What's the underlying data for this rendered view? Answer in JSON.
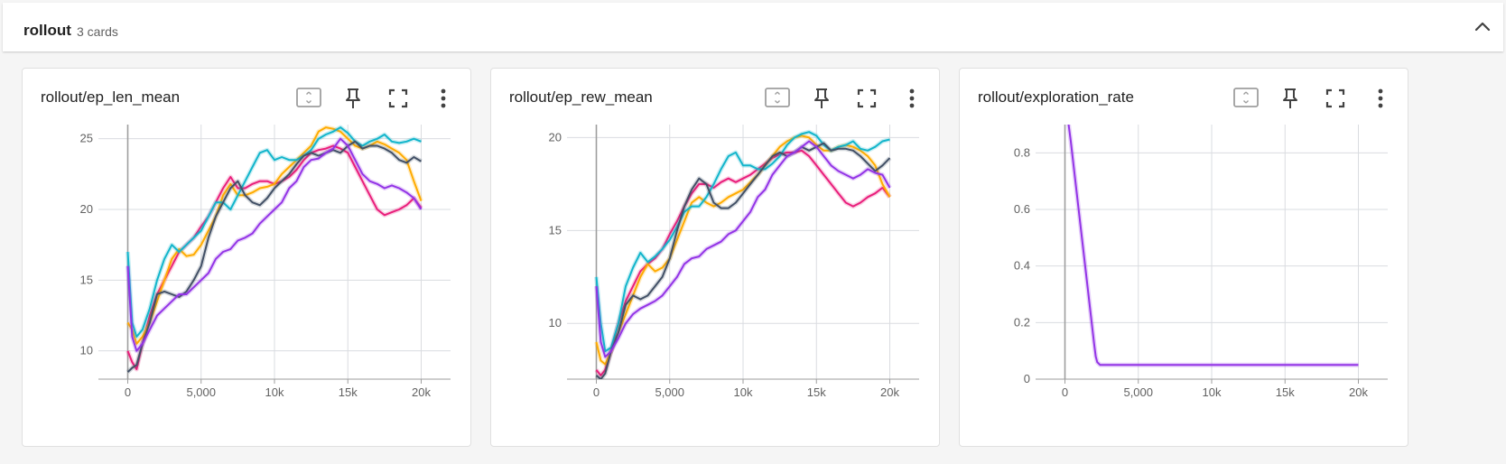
{
  "group": {
    "title": "rollout",
    "count_label": "3 cards"
  },
  "cards": [
    {
      "title": "rollout/ep_len_mean"
    },
    {
      "title": "rollout/ep_rew_mean"
    },
    {
      "title": "rollout/exploration_rate"
    }
  ],
  "colors": {
    "run1": "#e91e7b",
    "run2": "#ffab00",
    "run3": "#12b5cb",
    "run4": "#425066",
    "run5": "#9334e6"
  },
  "chart_data": [
    {
      "type": "line",
      "title": "rollout/ep_len_mean",
      "xlim": [
        -2000,
        22000
      ],
      "ylim": [
        8,
        26
      ],
      "xticks": [
        0,
        5000,
        10000,
        15000,
        20000
      ],
      "xtick_labels": [
        "0",
        "5,000",
        "10k",
        "15k",
        "20k"
      ],
      "yticks": [
        10,
        15,
        20,
        25
      ],
      "ytick_labels": [
        "10",
        "15",
        "20",
        "25"
      ],
      "grid": true,
      "series": [
        {
          "color": "#e91e7b",
          "x": [
            0,
            300,
            600,
            1000,
            1500,
            2000,
            2500,
            3000,
            3500,
            4000,
            4500,
            5000,
            5500,
            6000,
            6500,
            7000,
            7500,
            8000,
            8500,
            9000,
            9500,
            10000,
            10500,
            11000,
            11500,
            12000,
            12500,
            13000,
            13500,
            14000,
            14500,
            15000,
            15500,
            16000,
            16500,
            17000,
            17500,
            18000,
            18500,
            19000,
            19500,
            20000
          ],
          "y": [
            10,
            9.2,
            8.7,
            10.5,
            12.5,
            14,
            15,
            16,
            17,
            17.5,
            18,
            18.8,
            19.5,
            20.5,
            21.5,
            22.3,
            21.5,
            21.5,
            21.8,
            22,
            22,
            21.8,
            22,
            22.3,
            22.8,
            23.5,
            24,
            24.2,
            24.3,
            24.5,
            24.3,
            24,
            23,
            22,
            21,
            20,
            19.6,
            19.8,
            20,
            20.3,
            20.8,
            20.1
          ]
        },
        {
          "color": "#ffab00",
          "x": [
            0,
            300,
            600,
            1000,
            1500,
            2000,
            2500,
            3000,
            3500,
            4000,
            4500,
            5000,
            5500,
            6000,
            6500,
            7000,
            7500,
            8000,
            8500,
            9000,
            9500,
            10000,
            10500,
            11000,
            11500,
            12000,
            12500,
            13000,
            13500,
            14000,
            14500,
            15000,
            15500,
            16000,
            16500,
            17000,
            17500,
            18000,
            18500,
            19000,
            19500,
            20000
          ],
          "y": [
            12,
            11.5,
            10.5,
            11,
            12,
            13.5,
            15,
            16.5,
            17.2,
            16.7,
            16.8,
            17.5,
            18.5,
            19.5,
            21,
            21.8,
            21,
            21,
            21.2,
            21.5,
            21.6,
            21.8,
            22.5,
            23,
            23.5,
            24,
            24.5,
            25.5,
            25.8,
            25.7,
            25.5,
            25,
            24.5,
            24.3,
            24.5,
            24.8,
            24.6,
            24.3,
            24,
            23.5,
            22,
            20.6
          ]
        },
        {
          "color": "#12b5cb",
          "x": [
            0,
            300,
            600,
            1000,
            1500,
            2000,
            2500,
            3000,
            3500,
            4000,
            4500,
            5000,
            5500,
            6000,
            6500,
            7000,
            7500,
            8000,
            8500,
            9000,
            9500,
            10000,
            10500,
            11000,
            11500,
            12000,
            12500,
            13000,
            13500,
            14000,
            14500,
            15000,
            15500,
            16000,
            16500,
            17000,
            17500,
            18000,
            18500,
            19000,
            19500,
            20000
          ],
          "y": [
            17,
            12,
            11,
            11.5,
            13,
            15,
            16.5,
            17.5,
            17,
            17.5,
            18,
            18.5,
            19.5,
            20.5,
            20.5,
            20,
            21,
            22,
            23,
            24,
            24.2,
            23.5,
            23.7,
            23.5,
            23.5,
            23.8,
            24.2,
            25,
            25.3,
            25.5,
            25.8,
            25.4,
            24.8,
            24.5,
            24.8,
            25,
            25.3,
            24.8,
            24.7,
            24.8,
            25,
            24.8
          ]
        },
        {
          "color": "#425066",
          "x": [
            0,
            300,
            600,
            1000,
            1500,
            2000,
            2500,
            3000,
            3500,
            4000,
            4500,
            5000,
            5500,
            6000,
            6500,
            7000,
            7500,
            8000,
            8500,
            9000,
            9500,
            10000,
            10500,
            11000,
            11500,
            12000,
            12500,
            13000,
            13500,
            14000,
            14500,
            15000,
            15500,
            16000,
            16500,
            17000,
            17500,
            18000,
            18500,
            19000,
            19500,
            20000
          ],
          "y": [
            8.5,
            8.8,
            9,
            10.5,
            12,
            14,
            14.2,
            14,
            13.8,
            14.2,
            15,
            16,
            18,
            19.5,
            20.5,
            21.5,
            22,
            21,
            20.5,
            20.3,
            20.8,
            21.5,
            22,
            22.5,
            23.2,
            23.8,
            24,
            23.8,
            24,
            24.2,
            24,
            24.5,
            24.8,
            24.3,
            24.5,
            24.5,
            24.3,
            24,
            23.5,
            23.3,
            23.7,
            23.4
          ]
        },
        {
          "color": "#9334e6",
          "x": [
            0,
            300,
            600,
            1000,
            1500,
            2000,
            2500,
            3000,
            3500,
            4000,
            4500,
            5000,
            5500,
            6000,
            6500,
            7000,
            7500,
            8000,
            8500,
            9000,
            9500,
            10000,
            10500,
            11000,
            11500,
            12000,
            12500,
            13000,
            13500,
            14000,
            14500,
            15000,
            15500,
            16000,
            16500,
            17000,
            17500,
            18000,
            18500,
            19000,
            19500,
            20000
          ],
          "y": [
            16,
            11,
            10,
            10.5,
            11.5,
            12.5,
            13,
            13.5,
            14,
            14,
            14.5,
            15,
            15.5,
            16.5,
            17,
            17.2,
            17.8,
            18,
            18.3,
            19,
            19.5,
            20,
            20.5,
            21.5,
            22,
            23,
            23.5,
            23.6,
            24,
            24.3,
            25,
            24.5,
            23.5,
            22.5,
            22,
            21.8,
            21.5,
            21.7,
            21.5,
            21.2,
            20.8,
            20
          ]
        }
      ]
    },
    {
      "type": "line",
      "title": "rollout/ep_rew_mean",
      "xlim": [
        -2000,
        22000
      ],
      "ylim": [
        7,
        20.7
      ],
      "xticks": [
        0,
        5000,
        10000,
        15000,
        20000
      ],
      "xtick_labels": [
        "0",
        "5,000",
        "10k",
        "15k",
        "20k"
      ],
      "yticks": [
        10,
        15,
        20
      ],
      "ytick_labels": [
        "10",
        "15",
        "20"
      ],
      "grid": true,
      "series": [
        {
          "color": "#e91e7b",
          "x": [
            0,
            300,
            600,
            1000,
            1500,
            2000,
            2500,
            3000,
            3500,
            4000,
            4500,
            5000,
            5500,
            6000,
            6500,
            7000,
            7500,
            8000,
            8500,
            9000,
            9500,
            10000,
            10500,
            11000,
            11500,
            12000,
            12500,
            13000,
            13500,
            14000,
            14500,
            15000,
            15500,
            16000,
            16500,
            17000,
            17500,
            18000,
            18500,
            19000,
            19500,
            20000
          ],
          "y": [
            7.5,
            7.2,
            7.5,
            8.5,
            10,
            11.2,
            12,
            12.8,
            13.2,
            13.5,
            14,
            14.8,
            15.5,
            16.3,
            17,
            17.5,
            17.5,
            17.3,
            17.6,
            17.8,
            17.6,
            17.8,
            18,
            18.3,
            18.6,
            18.9,
            19.1,
            19.2,
            19.2,
            19.3,
            19,
            18.5,
            18,
            17.5,
            17,
            16.5,
            16.3,
            16.5,
            16.8,
            17,
            17.3,
            16.8
          ]
        },
        {
          "color": "#ffab00",
          "x": [
            0,
            300,
            600,
            1000,
            1500,
            2000,
            2500,
            3000,
            3500,
            4000,
            4500,
            5000,
            5500,
            6000,
            6500,
            7000,
            7500,
            8000,
            8500,
            9000,
            9500,
            10000,
            10500,
            11000,
            11500,
            12000,
            12500,
            13000,
            13500,
            14000,
            14500,
            15000,
            15500,
            16000,
            16500,
            17000,
            17500,
            18000,
            18500,
            19000,
            19500,
            20000
          ],
          "y": [
            9,
            8,
            7.8,
            8.5,
            9.5,
            10.5,
            11.5,
            12.5,
            13.2,
            12.8,
            13,
            13.5,
            14.5,
            15.5,
            16.5,
            16.8,
            16.5,
            16.3,
            16.5,
            16.8,
            17,
            17.2,
            17.6,
            18,
            18.5,
            19,
            19.5,
            19.8,
            20,
            20.1,
            20,
            19.6,
            19.3,
            19.3,
            19.5,
            19.6,
            19.5,
            19.3,
            19,
            18.5,
            17.5,
            16.8
          ]
        },
        {
          "color": "#12b5cb",
          "x": [
            0,
            300,
            600,
            1000,
            1500,
            2000,
            2500,
            3000,
            3500,
            4000,
            4500,
            5000,
            5500,
            6000,
            6500,
            7000,
            7500,
            8000,
            8500,
            9000,
            9500,
            10000,
            10500,
            11000,
            11500,
            12000,
            12500,
            13000,
            13500,
            14000,
            14500,
            15000,
            15500,
            16000,
            16500,
            17000,
            17500,
            18000,
            18500,
            19000,
            19500,
            20000
          ],
          "y": [
            12.5,
            10,
            8.5,
            8.7,
            10,
            12,
            13,
            13.8,
            13.3,
            13.6,
            14,
            14.5,
            15.2,
            16,
            16.3,
            16.3,
            16.8,
            17.5,
            18.3,
            19,
            19.2,
            18.5,
            18.5,
            18.3,
            18.3,
            18.6,
            19,
            19.6,
            20,
            20.2,
            20.3,
            20.1,
            19.6,
            19.3,
            19.5,
            19.6,
            19.8,
            19.4,
            19.3,
            19.5,
            19.8,
            19.9
          ]
        },
        {
          "color": "#425066",
          "x": [
            0,
            300,
            600,
            1000,
            1500,
            2000,
            2500,
            3000,
            3500,
            4000,
            4500,
            5000,
            5500,
            6000,
            6500,
            7000,
            7500,
            8000,
            8500,
            9000,
            9500,
            10000,
            10500,
            11000,
            11500,
            12000,
            12500,
            13000,
            13500,
            14000,
            14500,
            15000,
            15500,
            16000,
            16500,
            17000,
            17500,
            18000,
            18500,
            19000,
            19500,
            20000
          ],
          "y": [
            7.2,
            7,
            7.3,
            8.5,
            9.5,
            11,
            11.5,
            11.3,
            11.5,
            12,
            12.5,
            13.5,
            15,
            16.3,
            17.2,
            17.8,
            17.5,
            16.5,
            16.2,
            16.2,
            16.5,
            17,
            17.5,
            18,
            18.5,
            19,
            19.2,
            19,
            19.2,
            19.5,
            19.3,
            19.5,
            19.7,
            19.3,
            19.4,
            19.4,
            19.3,
            19,
            18.6,
            18.2,
            18.5,
            18.9
          ]
        },
        {
          "color": "#9334e6",
          "x": [
            0,
            300,
            600,
            1000,
            1500,
            2000,
            2500,
            3000,
            3500,
            4000,
            4500,
            5000,
            5500,
            6000,
            6500,
            7000,
            7500,
            8000,
            8500,
            9000,
            9500,
            10000,
            10500,
            11000,
            11500,
            12000,
            12500,
            13000,
            13500,
            14000,
            14500,
            15000,
            15500,
            16000,
            16500,
            17000,
            17500,
            18000,
            18500,
            19000,
            19500,
            20000
          ],
          "y": [
            12,
            9,
            8.2,
            8.5,
            9.2,
            10,
            10.5,
            10.8,
            11,
            11.2,
            11.5,
            12,
            12.5,
            13.2,
            13.5,
            13.6,
            14,
            14.2,
            14.4,
            14.8,
            15,
            15.5,
            16,
            16.8,
            17.2,
            18,
            18.5,
            19,
            19.2,
            19.5,
            19.8,
            19.5,
            19,
            18.5,
            18.2,
            18,
            17.8,
            18,
            18.3,
            18.1,
            18,
            17.3
          ]
        }
      ]
    },
    {
      "type": "line",
      "title": "rollout/exploration_rate",
      "xlim": [
        -2000,
        22000
      ],
      "ylim": [
        0,
        0.9
      ],
      "xticks": [
        0,
        5000,
        10000,
        15000,
        20000
      ],
      "xtick_labels": [
        "0",
        "5,000",
        "10k",
        "15k",
        "20k"
      ],
      "yticks": [
        0,
        0.2,
        0.4,
        0.6,
        0.8
      ],
      "ytick_labels": [
        "0",
        "0.2",
        "0.4",
        "0.6",
        "0.8"
      ],
      "grid": true,
      "series": [
        {
          "color": "#9334e6",
          "x": [
            0,
            400,
            800,
            1200,
            1600,
            2000,
            2100,
            2200,
            2400,
            3000,
            5000,
            10000,
            15000,
            20000
          ],
          "y": [
            1.0,
            0.84,
            0.66,
            0.48,
            0.3,
            0.12,
            0.08,
            0.06,
            0.05,
            0.05,
            0.05,
            0.05,
            0.05,
            0.05
          ]
        }
      ]
    }
  ]
}
